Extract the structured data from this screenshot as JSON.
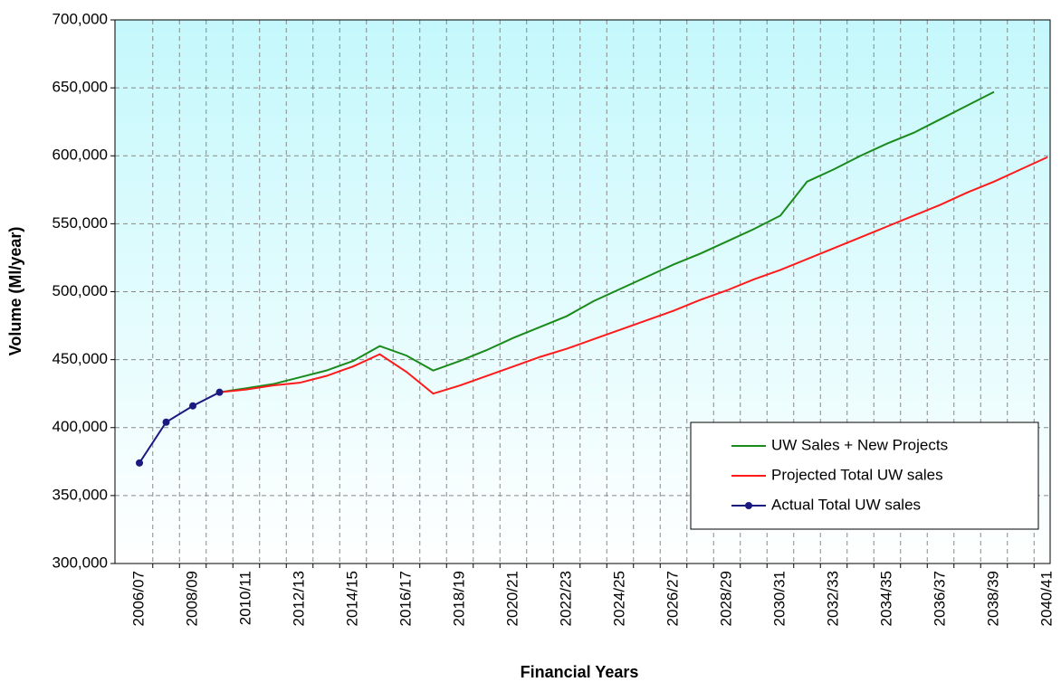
{
  "chart_data": {
    "type": "line",
    "x_label": "Financial Years",
    "y_label": "Volume (Ml/year)",
    "categories": [
      "2006/07",
      null,
      "2008/09",
      null,
      "2010/11",
      null,
      "2012/13",
      null,
      "2014/15",
      null,
      "2016/17",
      null,
      "2018/19",
      null,
      "2020/21",
      null,
      "2022/23",
      null,
      "2024/25",
      null,
      "2026/27",
      null,
      "2028/29",
      null,
      "2030/31",
      null,
      "2032/33",
      null,
      "2034/35",
      null,
      "2036/37",
      null,
      "2038/39",
      null,
      "2040/41"
    ],
    "series": [
      {
        "name": "UW Sales + New Projects",
        "color": "#1a8a1a",
        "marker": false,
        "values": [
          null,
          null,
          null,
          426000,
          429000,
          432000,
          437000,
          442000,
          449000,
          460000,
          453000,
          442000,
          449000,
          457000,
          466000,
          474000,
          482000,
          493000,
          502000,
          511000,
          520000,
          528000,
          537000,
          546000,
          556000,
          581000,
          590000,
          600000,
          609000,
          617000,
          627000,
          637000,
          647000,
          null,
          null
        ]
      },
      {
        "name": "Projected Total UW sales",
        "color": "#ff1a1a",
        "marker": false,
        "values": [
          null,
          null,
          null,
          426000,
          428000,
          431000,
          433000,
          438000,
          445000,
          454000,
          441000,
          425000,
          431000,
          438000,
          445000,
          452000,
          458000,
          465000,
          472000,
          479000,
          486000,
          494000,
          501000,
          509000,
          516000,
          524000,
          532000,
          540000,
          548000,
          556000,
          564000,
          573000,
          581000,
          590000,
          599000
        ]
      },
      {
        "name": "Actual Total UW sales",
        "color": "#1a1a80",
        "marker": true,
        "values": [
          374000,
          404000,
          416000,
          426000,
          null,
          null,
          null,
          null,
          null,
          null,
          null,
          null,
          null,
          null,
          null,
          null,
          null,
          null,
          null,
          null,
          null,
          null,
          null,
          null,
          null,
          null,
          null,
          null,
          null,
          null,
          null,
          null,
          null,
          null,
          null
        ]
      }
    ],
    "ylim": [
      300000,
      700000
    ],
    "yticks": [
      {
        "value": 300000,
        "label": "300,000"
      },
      {
        "value": 350000,
        "label": "350,000"
      },
      {
        "value": 400000,
        "label": "400,000"
      },
      {
        "value": 450000,
        "label": "450,000"
      },
      {
        "value": 500000,
        "label": "500,000"
      },
      {
        "value": 550000,
        "label": "550,000"
      },
      {
        "value": 600000,
        "label": "600,000"
      },
      {
        "value": 650000,
        "label": "650,000"
      },
      {
        "value": 700000,
        "label": "700,000"
      }
    ],
    "grid": true,
    "legend": "lower right"
  }
}
